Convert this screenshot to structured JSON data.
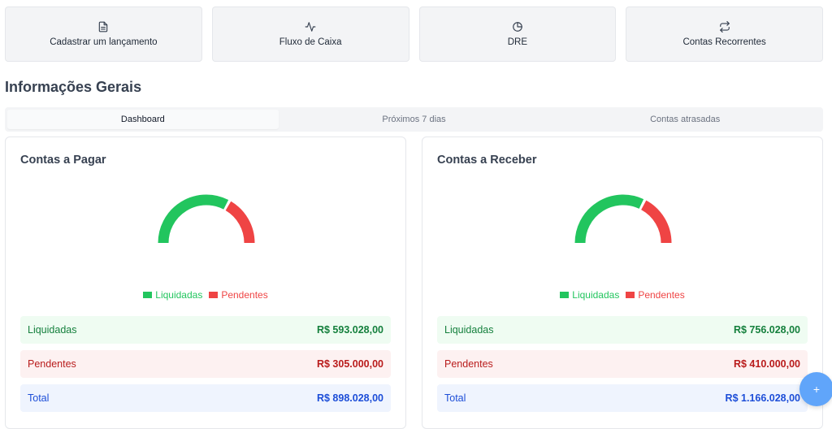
{
  "actions": [
    {
      "label": "Cadastrar um lançamento",
      "icon": "file-text-icon"
    },
    {
      "label": "Fluxo de Caixa",
      "icon": "activity-icon"
    },
    {
      "label": "DRE",
      "icon": "pie-chart-icon"
    },
    {
      "label": "Contas Recorrentes",
      "icon": "repeat-icon"
    }
  ],
  "section_title": "Informações Gerais",
  "tabs": [
    {
      "label": "Dashboard",
      "active": true
    },
    {
      "label": "Próximos 7 dias",
      "active": false
    },
    {
      "label": "Contas atrasadas",
      "active": false
    }
  ],
  "colors": {
    "green": "#22c55e",
    "red": "#ef4444",
    "blue": "#1d4ed8"
  },
  "panels": [
    {
      "title": "Contas a Pagar",
      "legend": {
        "paid": "Liquidadas",
        "pending": "Pendentes"
      },
      "gauge": {
        "paid": 593028.0,
        "pending": 305000.0
      },
      "rows": {
        "paid_label": "Liquidadas",
        "paid_value": "R$ 593.028,00",
        "pending_label": "Pendentes",
        "pending_value": "R$ 305.000,00",
        "total_label": "Total",
        "total_value": "R$ 898.028,00"
      }
    },
    {
      "title": "Contas a Receber",
      "legend": {
        "paid": "Liquidadas",
        "pending": "Pendentes"
      },
      "gauge": {
        "paid": 756028.0,
        "pending": 410000.0
      },
      "rows": {
        "paid_label": "Liquidadas",
        "paid_value": "R$ 756.028,00",
        "pending_label": "Pendentes",
        "pending_value": "R$ 410.000,00",
        "total_label": "Total",
        "total_value": "R$ 1.166.028,00"
      }
    }
  ],
  "fab": {
    "label": "+"
  }
}
